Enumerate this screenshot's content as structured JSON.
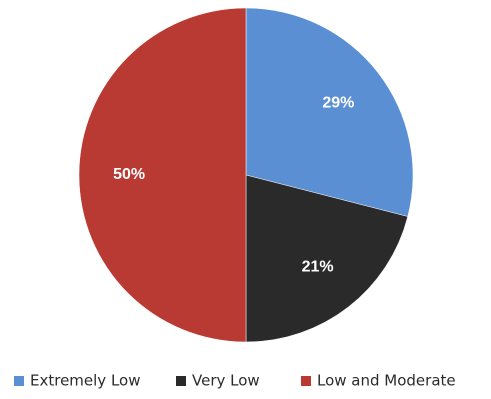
{
  "chart_data": {
    "type": "pie",
    "title": "",
    "start_angle_deg": 0,
    "direction": "clockwise",
    "legend_position": "bottom",
    "slices": [
      {
        "label": "Extremely Low",
        "value": 29,
        "display": "29%",
        "color": "#5b8fd4"
      },
      {
        "label": "Very Low",
        "value": 21,
        "display": "21%",
        "color": "#2a2a2a"
      },
      {
        "label": "Low and Moderate",
        "value": 50,
        "display": "50%",
        "color": "#b83a32"
      }
    ]
  }
}
